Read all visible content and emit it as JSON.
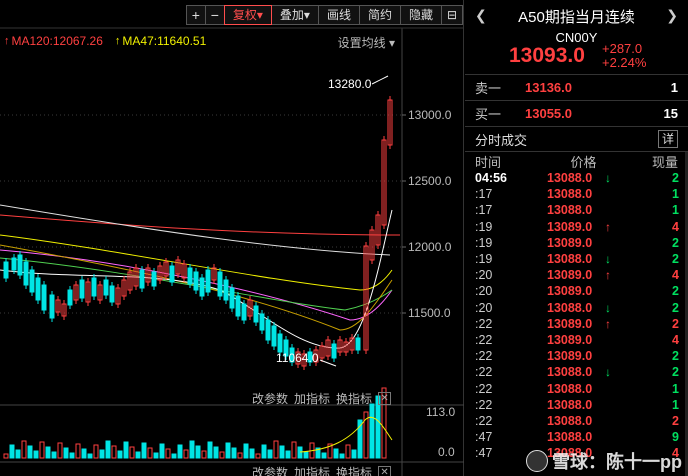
{
  "toolbar": {
    "zoom_in": "+",
    "zoom_out": "−",
    "adjust": "复权",
    "overlay": "叠加",
    "draw": "画线",
    "simple": "简约",
    "hide": "隐藏",
    "collapse": "⊟"
  },
  "ma_legend": {
    "ma120": "MA120:12067.26",
    "ma47": "MA47:11640.51",
    "settings": "设置均线"
  },
  "price_axis": [
    "13000.0",
    "12500.0",
    "12000.0",
    "11500.0"
  ],
  "annotations": {
    "high": "13280.0",
    "low": "11064.0"
  },
  "sub_chart": {
    "params": "改参数",
    "add_indicator": "加指标",
    "switch_indicator": "换指标",
    "axis_top": "113.0",
    "axis_bottom": "0.0"
  },
  "colors": {
    "up": "#ff4040",
    "down": "#00e5e5",
    "ma120": "#ff4040",
    "ma47": "#f0f000"
  },
  "quote": {
    "title": "A50期指当月连续",
    "code": "CN00Y",
    "price": "13093.0",
    "change": "+287.0",
    "change_pct": "+2.24%",
    "ask_label": "卖一",
    "ask_price": "13136.0",
    "ask_vol": "1",
    "bid_label": "买一",
    "bid_price": "13055.0",
    "bid_vol": "15"
  },
  "ticks": {
    "title": "分时成交",
    "detail": "详",
    "col_time": "时间",
    "col_price": "价格",
    "col_vol": "现量",
    "rows": [
      {
        "time": "04:56",
        "price": "13088.0",
        "dir": "down",
        "vol": "2"
      },
      {
        "time": ":17",
        "price": "13088.0",
        "dir": "",
        "vol": "1"
      },
      {
        "time": ":17",
        "price": "13088.0",
        "dir": "",
        "vol": "1"
      },
      {
        "time": ":19",
        "price": "13089.0",
        "dir": "up",
        "vol": "4"
      },
      {
        "time": ":19",
        "price": "13089.0",
        "dir": "",
        "vol": "2"
      },
      {
        "time": ":19",
        "price": "13088.0",
        "dir": "down",
        "vol": "2"
      },
      {
        "time": ":20",
        "price": "13089.0",
        "dir": "up",
        "vol": "4"
      },
      {
        "time": ":20",
        "price": "13089.0",
        "dir": "",
        "vol": "2"
      },
      {
        "time": ":20",
        "price": "13088.0",
        "dir": "down",
        "vol": "2"
      },
      {
        "time": ":22",
        "price": "13089.0",
        "dir": "up",
        "vol": "2"
      },
      {
        "time": ":22",
        "price": "13089.0",
        "dir": "",
        "vol": "4"
      },
      {
        "time": ":22",
        "price": "13089.0",
        "dir": "",
        "vol": "2"
      },
      {
        "time": ":22",
        "price": "13088.0",
        "dir": "down",
        "vol": "2"
      },
      {
        "time": ":22",
        "price": "13088.0",
        "dir": "",
        "vol": "1"
      },
      {
        "time": ":22",
        "price": "13088.0",
        "dir": "",
        "vol": "1"
      },
      {
        "time": ":22",
        "price": "13088.0",
        "dir": "",
        "vol": "2"
      },
      {
        "time": ":47",
        "price": "13088.0",
        "dir": "",
        "vol": "9"
      },
      {
        "time": ":47",
        "price": "13088.0",
        "dir": "",
        "vol": "4"
      }
    ]
  },
  "watermark": "雪球：陈十一pp"
}
